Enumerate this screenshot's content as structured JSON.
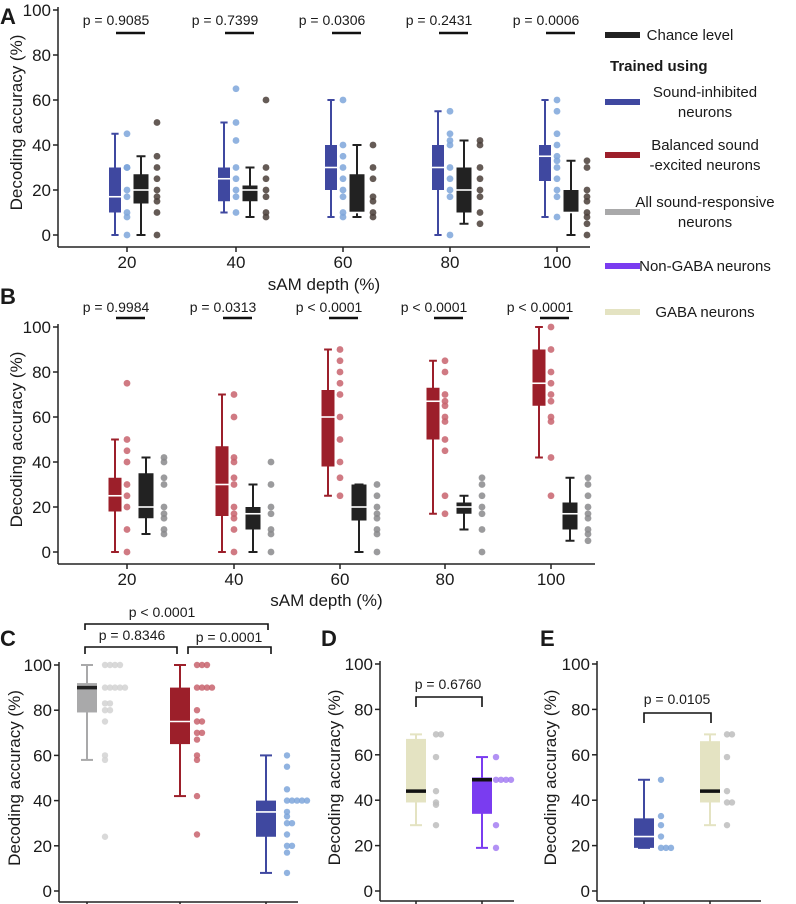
{
  "legend": {
    "chance_label": "Chance level",
    "chance_color": "#222222",
    "title": "Trained using",
    "items": [
      {
        "lines": [
          "Sound-inhibited",
          "neurons"
        ],
        "color": "#3f48a0"
      },
      {
        "lines": [
          "Balanced sound",
          "-excited neurons"
        ],
        "color": "#9c1f2a"
      },
      {
        "lines": [
          "All sound-responsive",
          "neurons"
        ],
        "color": "#a9a9aa"
      },
      {
        "lines": [
          "Non-GABA neurons"
        ],
        "color": "#7a3cf0"
      },
      {
        "lines": [
          "GABA neurons"
        ],
        "color": "#e4e3c2"
      }
    ]
  },
  "chart_data": [
    {
      "panel": "A",
      "type": "box",
      "xlabel": "sAM depth (%)",
      "ylabel": "Decoding accuracy (%)",
      "ylim": [
        0,
        100
      ],
      "yticks": [
        "0",
        "20",
        "40",
        "60",
        "80",
        "100"
      ],
      "categories": [
        "20",
        "40",
        "60",
        "80",
        "100"
      ],
      "p_values": [
        "p = 0.9085",
        "p = 0.7399",
        "p = 0.0306",
        "p = 0.2431",
        "p = 0.0006"
      ],
      "series": [
        {
          "name": "Sound-inhibited neurons",
          "color": "#3f48a0",
          "dot_color": "#7ea6da",
          "median_color": "#ffffff",
          "groups": [
            {
              "box": [
                0,
                10,
                17,
                30,
                45
              ],
              "points": [
                45,
                30,
                30,
                20,
                17,
                10,
                8,
                0
              ]
            },
            {
              "box": [
                10,
                15,
                25,
                30,
                50
              ],
              "points": [
                65,
                50,
                42,
                30,
                25,
                20,
                17,
                10
              ]
            },
            {
              "box": [
                8,
                20,
                30,
                40,
                60
              ],
              "points": [
                60,
                40,
                35,
                30,
                25,
                20,
                17,
                10,
                8
              ]
            },
            {
              "box": [
                0,
                20,
                30,
                40,
                55
              ],
              "points": [
                55,
                45,
                42,
                40,
                30,
                25,
                20,
                17,
                0
              ]
            },
            {
              "box": [
                8,
                24,
                35,
                40,
                60
              ],
              "points": [
                60,
                55,
                45,
                40,
                35,
                33,
                30,
                25,
                20,
                17,
                8
              ]
            }
          ]
        },
        {
          "name": "Chance level",
          "color": "#222222",
          "dot_color": "#4a3e38",
          "median_color": "#ffffff",
          "groups": [
            {
              "box": [
                0,
                14,
                20,
                27,
                35
              ],
              "points": [
                50,
                35,
                30,
                25,
                20,
                17,
                15,
                10,
                0
              ]
            },
            {
              "box": [
                8,
                15,
                20,
                22,
                30
              ],
              "points": [
                60,
                30,
                25,
                20,
                17,
                10,
                8
              ]
            },
            {
              "box": [
                8,
                10,
                10,
                27,
                40
              ],
              "points": [
                40,
                30,
                25,
                17,
                15,
                10,
                8
              ]
            },
            {
              "box": [
                5,
                10,
                20,
                30,
                42
              ],
              "points": [
                42,
                40,
                30,
                25,
                20,
                17,
                10,
                5
              ]
            },
            {
              "box": [
                0,
                10,
                10,
                20,
                33
              ],
              "points": [
                33,
                30,
                20,
                17,
                15,
                10,
                8,
                5,
                0
              ]
            }
          ]
        }
      ]
    },
    {
      "panel": "B",
      "type": "box",
      "xlabel": "sAM depth (%)",
      "ylabel": "Decoding accuracy (%)",
      "ylim": [
        0,
        100
      ],
      "yticks": [
        "0",
        "20",
        "40",
        "60",
        "80",
        "100"
      ],
      "categories": [
        "20",
        "40",
        "60",
        "80",
        "100"
      ],
      "p_values": [
        "p = 0.9984",
        "p = 0.0313",
        "p < 0.0001",
        "p < 0.0001",
        "p < 0.0001"
      ],
      "series": [
        {
          "name": "Balanced sound-excited neurons",
          "color": "#9c1f2a",
          "dot_color": "#c8636d",
          "median_color": "#ffffff",
          "groups": [
            {
              "box": [
                0,
                18,
                25,
                33,
                50
              ],
              "points": [
                75,
                50,
                45,
                40,
                30,
                25,
                20,
                10,
                0
              ]
            },
            {
              "box": [
                0,
                16,
                30,
                47,
                70
              ],
              "points": [
                70,
                60,
                42,
                40,
                33,
                30,
                20,
                17,
                15,
                10,
                0
              ]
            },
            {
              "box": [
                25,
                38,
                60,
                72,
                90
              ],
              "points": [
                90,
                85,
                80,
                75,
                70,
                60,
                50,
                40,
                33,
                25
              ]
            },
            {
              "box": [
                17,
                50,
                67,
                73,
                85
              ],
              "points": [
                85,
                80,
                70,
                67,
                65,
                60,
                58,
                50,
                45,
                25,
                17
              ]
            },
            {
              "box": [
                42,
                65,
                75,
                90,
                100
              ],
              "points": [
                100,
                90,
                80,
                75,
                70,
                67,
                60,
                58,
                42,
                25
              ]
            }
          ]
        },
        {
          "name": "Chance level",
          "color": "#222222",
          "dot_color": "#8a8a8c",
          "median_color": "#ffffff",
          "groups": [
            {
              "box": [
                8,
                15,
                20,
                35,
                42
              ],
              "points": [
                42,
                40,
                33,
                30,
                20,
                17,
                15,
                10,
                8
              ]
            },
            {
              "box": [
                0,
                10,
                17,
                20,
                30
              ],
              "points": [
                40,
                30,
                20,
                17,
                10,
                8,
                0
              ]
            },
            {
              "box": [
                0,
                14,
                20,
                30,
                30
              ],
              "points": [
                30,
                25,
                20,
                17,
                15,
                10,
                8,
                0
              ]
            },
            {
              "box": [
                10,
                17,
                20,
                22,
                25
              ],
              "points": [
                33,
                30,
                25,
                20,
                17,
                10,
                0
              ]
            },
            {
              "box": [
                5,
                10,
                17,
                22,
                33
              ],
              "points": [
                33,
                30,
                25,
                20,
                17,
                15,
                10,
                8,
                5
              ]
            }
          ]
        }
      ]
    },
    {
      "panel": "C",
      "type": "box",
      "ylabel": "Decoding accuracy (%)",
      "ylim": [
        0,
        100
      ],
      "yticks": [
        "0",
        "20",
        "40",
        "60",
        "80",
        "100"
      ],
      "groups": [
        {
          "name": "All sound-responsive neurons",
          "color": "#a9a9aa",
          "dot_color": "#d2d2d2",
          "median_color": "#222222",
          "box": [
            58,
            79,
            90,
            92,
            100
          ],
          "points": [
            100,
            100,
            100,
            100,
            90,
            90,
            90,
            90,
            90,
            83,
            83,
            80,
            80,
            75,
            60,
            58,
            24
          ]
        },
        {
          "name": "Balanced sound-excited neurons",
          "color": "#9c1f2a",
          "dot_color": "#c8636d",
          "median_color": "#ffffff",
          "box": [
            42,
            65,
            75,
            90,
            100
          ],
          "points": [
            100,
            100,
            100,
            90,
            90,
            90,
            90,
            80,
            75,
            75,
            70,
            70,
            67,
            60,
            58,
            42,
            25
          ]
        },
        {
          "name": "Sound-inhibited neurons",
          "color": "#3f48a0",
          "dot_color": "#7ea6da",
          "median_color": "#ffffff",
          "box": [
            8,
            24,
            35,
            40,
            60
          ],
          "points": [
            60,
            55,
            45,
            40,
            40,
            40,
            40,
            40,
            35,
            33,
            30,
            30,
            25,
            20,
            20,
            17,
            8
          ]
        }
      ],
      "comparisons": [
        {
          "label": "p < 0.0001",
          "groups": [
            0,
            2
          ]
        },
        {
          "label": "p = 0.8346",
          "groups": [
            0,
            1
          ]
        },
        {
          "label": "p = 0.0001",
          "groups": [
            1,
            2
          ]
        }
      ]
    },
    {
      "panel": "D",
      "type": "box",
      "ylabel": "Decoding accuracy (%)",
      "ylim": [
        0,
        100
      ],
      "yticks": [
        "0",
        "20",
        "40",
        "60",
        "80",
        "100"
      ],
      "groups": [
        {
          "name": "GABA neurons",
          "color": "#e4e3c2",
          "dot_color": "#bdbdbd",
          "median_color": "#111111",
          "box": [
            29,
            39,
            44,
            67,
            69
          ],
          "points": [
            69,
            69,
            59,
            44,
            39,
            38,
            29
          ]
        },
        {
          "name": "Non-GABA neurons",
          "color": "#7a3cf0",
          "dot_color": "#a47ef2",
          "median_color": "#111111",
          "box": [
            19,
            34,
            49,
            50,
            59
          ],
          "points": [
            59,
            49,
            49,
            49,
            49,
            29,
            19
          ]
        }
      ],
      "comparisons": [
        {
          "label": "p = 0.6760",
          "groups": [
            0,
            1
          ]
        }
      ]
    },
    {
      "panel": "E",
      "type": "box",
      "ylabel": "Decoding accuracy (%)",
      "ylim": [
        0,
        100
      ],
      "yticks": [
        "0",
        "20",
        "40",
        "60",
        "80",
        "100"
      ],
      "groups": [
        {
          "name": "Sound-inhibited neurons",
          "color": "#3f48a0",
          "dot_color": "#7ea6da",
          "median_color": "#ffffff",
          "box": [
            19,
            19,
            24,
            32,
            49
          ],
          "points": [
            49,
            33,
            29,
            24,
            19,
            19,
            19
          ]
        },
        {
          "name": "GABA neurons",
          "color": "#e4e3c2",
          "dot_color": "#bdbdbd",
          "median_color": "#111111",
          "box": [
            29,
            39,
            44,
            66,
            69
          ],
          "points": [
            69,
            69,
            59,
            44,
            39,
            39,
            29
          ]
        }
      ],
      "comparisons": [
        {
          "label": "p = 0.0105",
          "groups": [
            0,
            1
          ]
        }
      ]
    }
  ]
}
